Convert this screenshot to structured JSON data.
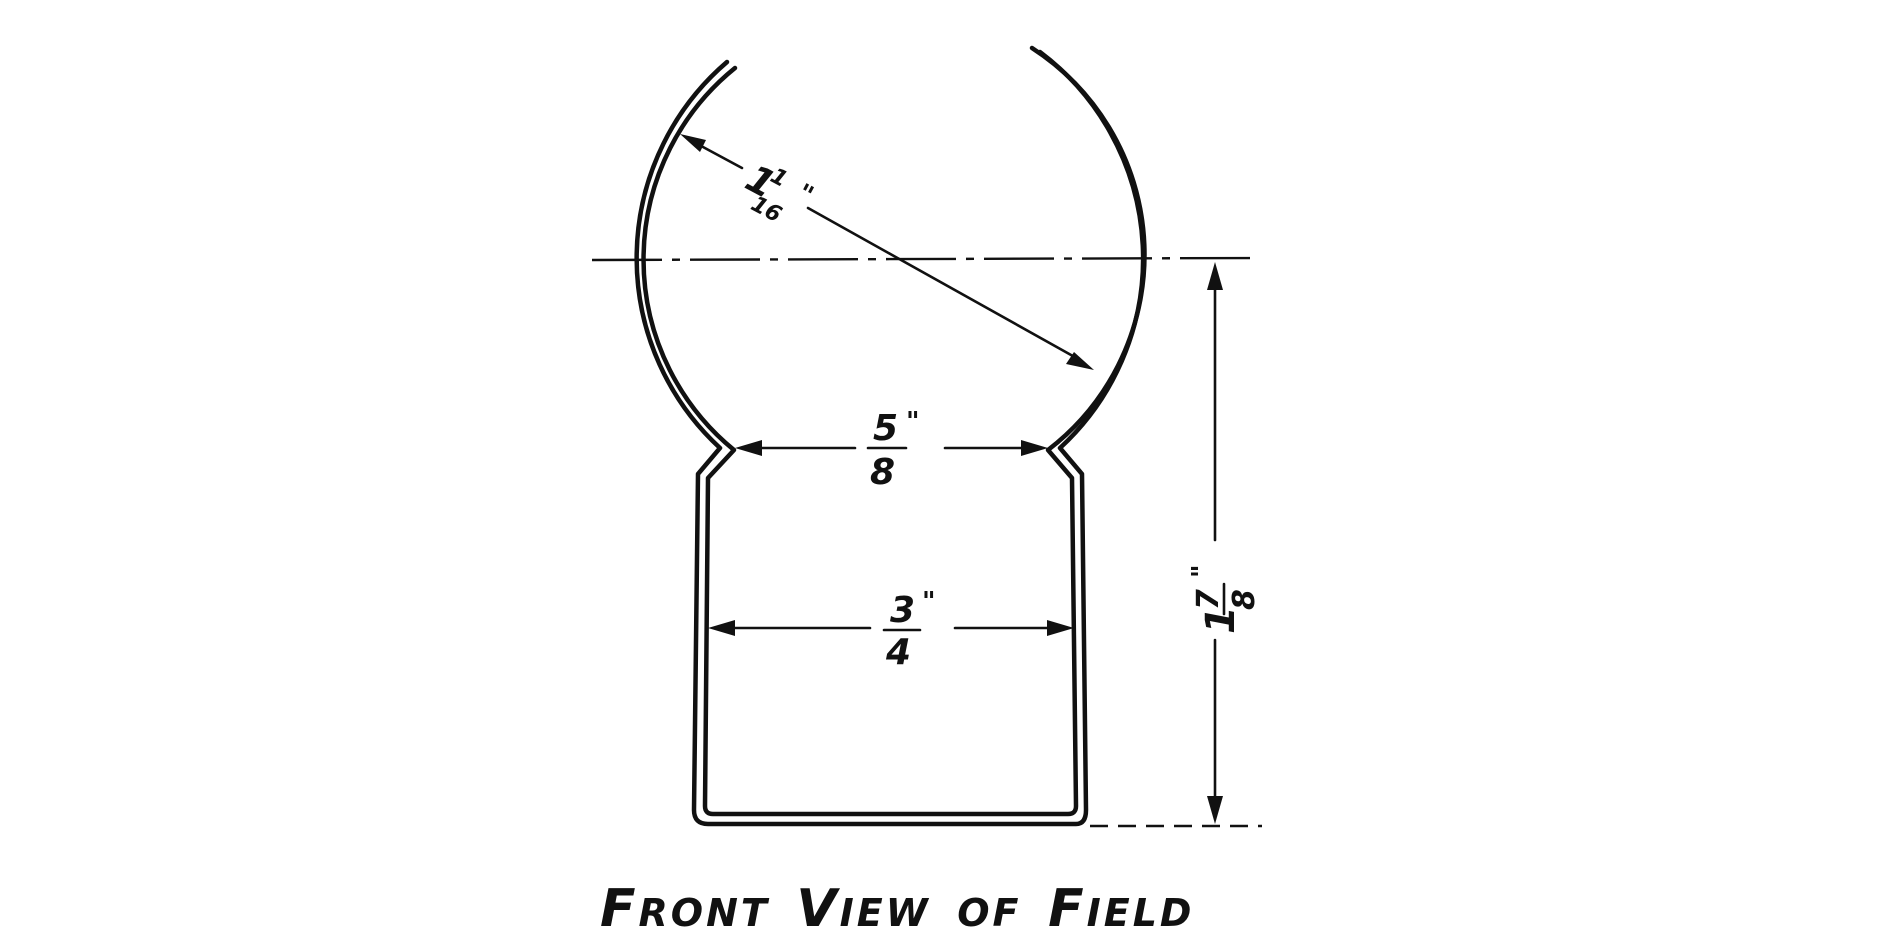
{
  "caption": {
    "first_letters": [
      "F",
      "V",
      "F"
    ],
    "words": [
      "FRONT",
      "VIEW",
      "OF",
      "FIELD"
    ]
  },
  "dimensions": {
    "radius": {
      "whole": "1",
      "num": "1",
      "den": "16",
      "mark": "\""
    },
    "neck": {
      "num": "5",
      "den": "8",
      "mark": "\""
    },
    "body": {
      "num": "3",
      "den": "4",
      "mark": "\""
    },
    "height": {
      "whole": "1",
      "num": "7",
      "den": "8",
      "mark": "\""
    }
  }
}
